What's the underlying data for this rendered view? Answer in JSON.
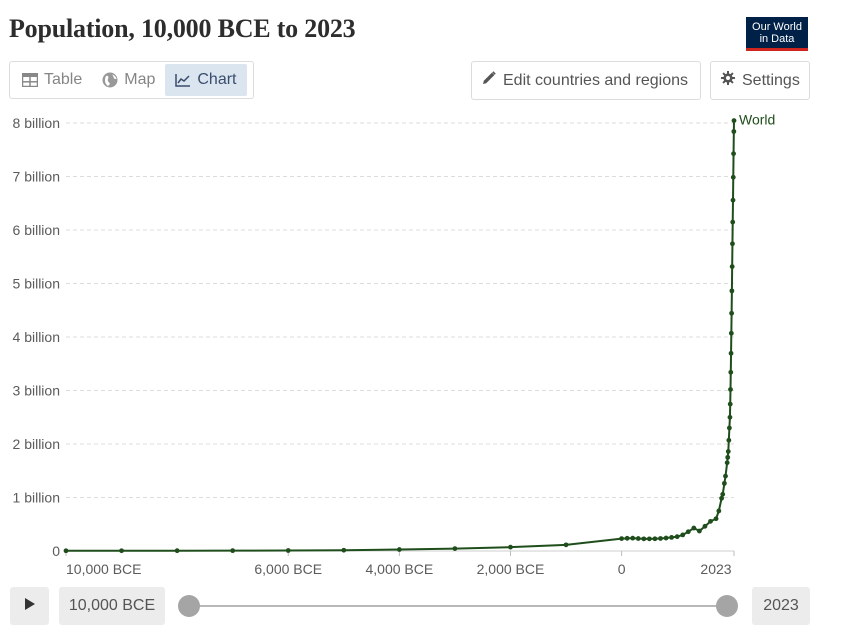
{
  "header": {
    "title": "Population, 10,000 BCE to 2023",
    "logo_line1": "Our World",
    "logo_line2": "in Data"
  },
  "tabs": [
    {
      "label": "Table",
      "icon": "table-icon",
      "active": false
    },
    {
      "label": "Map",
      "icon": "globe-icon",
      "active": false
    },
    {
      "label": "Chart",
      "icon": "line-chart-icon",
      "active": true
    }
  ],
  "toolbar": {
    "edit_label": "Edit countries and regions",
    "settings_label": "Settings"
  },
  "timeline": {
    "start_label": "10,000 BCE",
    "end_label": "2023",
    "start_year": -10000,
    "end_year": 2023
  },
  "colors": {
    "series": "#1f4e1c",
    "grid": "#dcdcdc",
    "axis_text": "#5b5b5b",
    "logo_bg": "#002147",
    "logo_accent": "#ce261e"
  },
  "chart_data": {
    "type": "line",
    "title": "Population, 10,000 BCE to 2023",
    "xlim": [
      -10000,
      2023
    ],
    "ylim": [
      0,
      8000000000
    ],
    "grid": true,
    "y_ticks": [
      {
        "value": 0,
        "label": "0"
      },
      {
        "value": 1000000000,
        "label": "1 billion"
      },
      {
        "value": 2000000000,
        "label": "2 billion"
      },
      {
        "value": 3000000000,
        "label": "3 billion"
      },
      {
        "value": 4000000000,
        "label": "4 billion"
      },
      {
        "value": 5000000000,
        "label": "5 billion"
      },
      {
        "value": 6000000000,
        "label": "6 billion"
      },
      {
        "value": 7000000000,
        "label": "7 billion"
      },
      {
        "value": 8000000000,
        "label": "8 billion"
      }
    ],
    "x_ticks": [
      {
        "value": -10000,
        "label": "10,000 BCE"
      },
      {
        "value": -6000,
        "label": "6,000 BCE"
      },
      {
        "value": -4000,
        "label": "4,000 BCE"
      },
      {
        "value": -2000,
        "label": "2,000 BCE"
      },
      {
        "value": 0,
        "label": "0"
      },
      {
        "value": 2023,
        "label": "2023"
      }
    ],
    "series": [
      {
        "name": "World",
        "x": [
          -10000,
          -9000,
          -8000,
          -7000,
          -6000,
          -5000,
          -4000,
          -3000,
          -2000,
          -1000,
          0,
          100,
          200,
          300,
          400,
          500,
          600,
          700,
          800,
          900,
          1000,
          1100,
          1200,
          1300,
          1400,
          1500,
          1600,
          1700,
          1750,
          1800,
          1820,
          1850,
          1870,
          1900,
          1910,
          1920,
          1930,
          1940,
          1950,
          1955,
          1960,
          1965,
          1970,
          1975,
          1980,
          1985,
          1990,
          1995,
          2000,
          2005,
          2010,
          2015,
          2020,
          2023
        ],
        "y": [
          4500000,
          5000000,
          5500000,
          7000000,
          9500000,
          14500000,
          27500000,
          45000000,
          72000000,
          115000000,
          232000000,
          237000000,
          240000000,
          233000000,
          227000000,
          227000000,
          229000000,
          234000000,
          242000000,
          254000000,
          268000000,
          301000000,
          360000000,
          429000000,
          374000000,
          461000000,
          554000000,
          603000000,
          749000000,
          985000000,
          1060000000,
          1264000000,
          1400000000,
          1650000000,
          1750000000,
          1860000000,
          2070000000,
          2300000000,
          2499000000,
          2746000000,
          3019000000,
          3340000000,
          3695000000,
          4070000000,
          4444000000,
          4862000000,
          5316000000,
          5743000000,
          6149000000,
          6558000000,
          6985000000,
          7427000000,
          7841000000,
          8045000000
        ]
      }
    ]
  }
}
